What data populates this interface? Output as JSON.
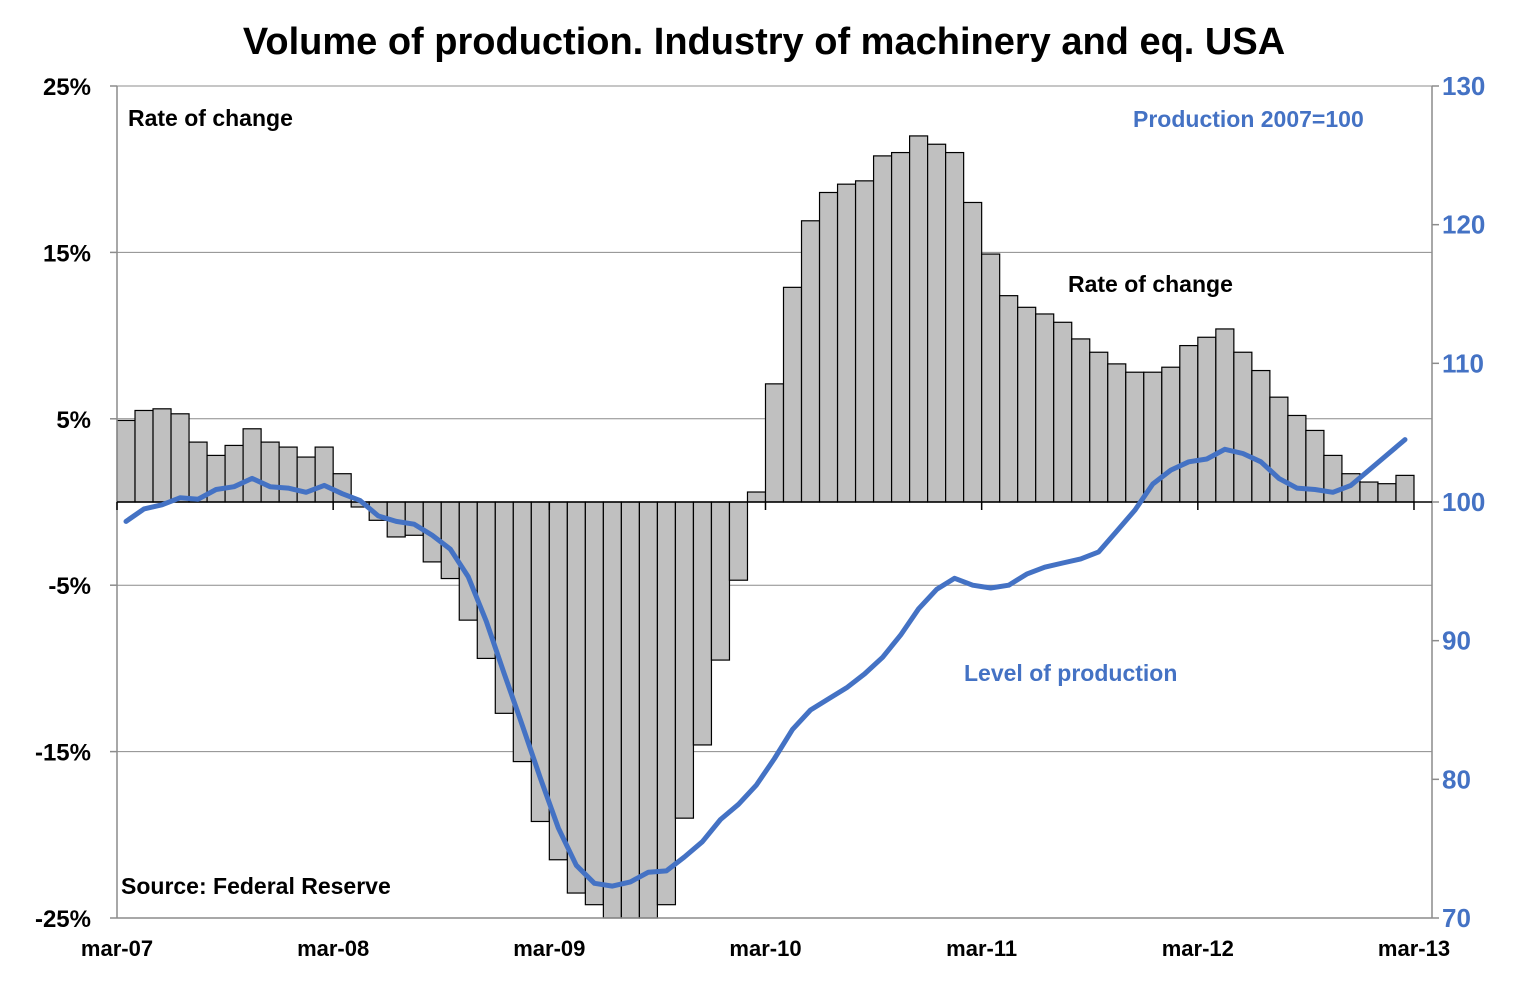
{
  "chart_data": {
    "type": "bar+line",
    "title": "Volume of production. Industry of machinery and eq. USA",
    "left_axis": {
      "ylim": [
        -25,
        25
      ],
      "ticks": [
        25,
        15,
        5,
        -5,
        -15,
        -25
      ],
      "tick_labels": [
        "25%",
        "15%",
        "5%",
        "-5%",
        "-15%",
        "-25%"
      ],
      "label": "Rate of change"
    },
    "right_axis": {
      "ylim": [
        70,
        130
      ],
      "ticks": [
        130,
        120,
        110,
        100,
        90,
        80,
        70
      ],
      "tick_labels": [
        "130",
        "120",
        "110",
        "100",
        "90",
        "80",
        "70"
      ],
      "label": "Production 2007=100"
    },
    "x_ticks": [
      "mar-07",
      "mar-08",
      "mar-09",
      "mar-10",
      "mar-11",
      "mar-12",
      "mar-13"
    ],
    "grid": true,
    "bar_series": {
      "name": "Rate of change",
      "color": "#c0c0c0",
      "values": [
        4.9,
        5.5,
        5.6,
        5.3,
        3.6,
        2.8,
        3.4,
        4.4,
        3.6,
        3.3,
        2.7,
        3.3,
        1.7,
        -0.3,
        -1.1,
        -2.1,
        -2.0,
        -3.6,
        -4.6,
        -7.1,
        -9.4,
        -12.7,
        -15.6,
        -19.2,
        -21.5,
        -23.5,
        -24.2,
        -25.0,
        -25.0,
        -25.0,
        -24.2,
        -19.0,
        -14.6,
        -9.5,
        -4.7,
        0.6,
        7.1,
        12.9,
        16.9,
        18.6,
        19.1,
        19.3,
        20.8,
        21.0,
        22.0,
        21.5,
        21.0,
        18.0,
        14.9,
        12.4,
        11.7,
        11.3,
        10.8,
        9.8,
        9.0,
        8.3,
        7.8,
        7.8,
        8.1,
        9.4,
        9.9,
        10.4,
        9.0,
        7.9,
        6.3,
        5.2,
        4.3,
        2.8,
        1.7,
        1.2,
        1.1,
        1.6
      ]
    },
    "line_series": {
      "name": "Level of production",
      "color": "#4472c4",
      "values": [
        98.6,
        99.5,
        99.8,
        100.3,
        100.2,
        100.9,
        101.1,
        101.7,
        101.1,
        101.0,
        100.7,
        101.2,
        100.6,
        100.1,
        99.0,
        98.6,
        98.4,
        97.6,
        96.6,
        94.6,
        91.4,
        87.6,
        83.9,
        80.1,
        76.5,
        73.8,
        72.5,
        72.3,
        72.6,
        73.3,
        73.4,
        74.4,
        75.5,
        77.1,
        78.2,
        79.6,
        81.5,
        83.6,
        85.0,
        85.8,
        86.6,
        87.6,
        88.8,
        90.4,
        92.3,
        93.7,
        94.5,
        94.0,
        93.8,
        94.0,
        94.8,
        95.3,
        95.6,
        95.9,
        96.4,
        97.9,
        99.4,
        101.3,
        102.3,
        102.9,
        103.1,
        103.8,
        103.5,
        102.9,
        101.7,
        101.0,
        100.9,
        100.7,
        101.2,
        102.3,
        103.4,
        104.5
      ]
    },
    "annotations": [
      "Rate of change",
      "Rate of change",
      "Production 2007=100",
      "Level of production",
      "Source: Federal Reserve"
    ]
  },
  "colors": {
    "bar_fill": "#c0c0c0",
    "bar_stroke": "#000000",
    "line": "#4472c4",
    "right_axis_text": "#4472c4",
    "grid": "#8c8c8c"
  }
}
